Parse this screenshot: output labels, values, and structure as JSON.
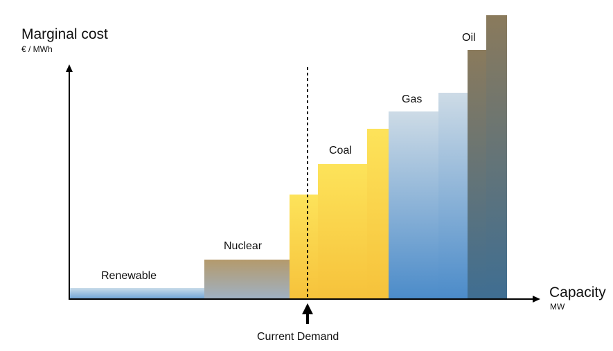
{
  "y_axis": {
    "title": "Marginal cost",
    "unit": "€ / MWh"
  },
  "x_axis": {
    "title": "Capacity",
    "unit": "MW"
  },
  "demand": {
    "label": "Current Demand"
  },
  "sources": [
    {
      "label": "Renewable"
    },
    {
      "label": "Nuclear"
    },
    {
      "label": "Coal"
    },
    {
      "label": "Gas"
    },
    {
      "label": "Oil"
    }
  ],
  "colors": {
    "renewable_top": "#c9dcea",
    "renewable_bottom": "#6ea3d6",
    "nuclear_top": "#b49a6c",
    "nuclear_bottom": "#9fb1c4",
    "coal_top": "#fde35a",
    "coal_bottom": "#f6c23b",
    "gas_top": "#cddbe6",
    "gas_bottom": "#4b8bc9",
    "oil_top": "#8a7a5c",
    "oil_bottom": "#3f6e92",
    "axis": "#000000"
  }
}
